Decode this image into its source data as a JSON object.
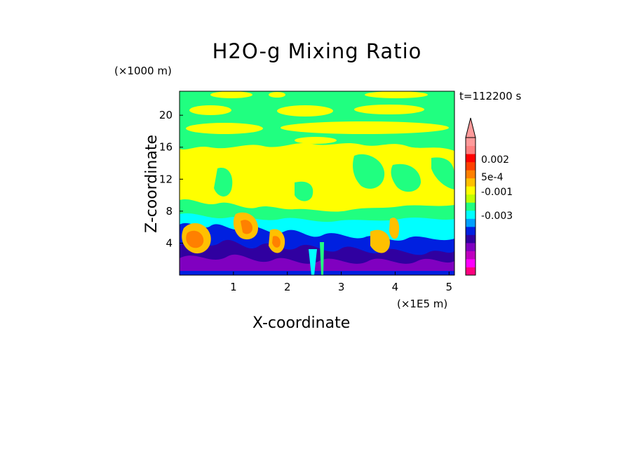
{
  "chart_data": {
    "type": "heatmap",
    "title": "H2O-g Mixing Ratio",
    "xlabel": "X-coordinate",
    "ylabel": "Z-coordinate",
    "x_unit": "(×1E5 m)",
    "y_unit": "(×1000 m)",
    "time_label": "t=112200 s",
    "xlim": [
      0,
      5.1
    ],
    "ylim": [
      0,
      23
    ],
    "x_ticks": [
      1,
      2,
      3,
      4,
      5
    ],
    "y_ticks": [
      4,
      8,
      12,
      16,
      20
    ],
    "colorbar": {
      "labels": [
        "0.002",
        "5e-4",
        "-0.001",
        "-0.003"
      ],
      "colors": [
        "#ff0080",
        "#ff00ff",
        "#c000c0",
        "#8000c0",
        "#3000a0",
        "#0020e0",
        "#00a0ff",
        "#00ffff",
        "#20ff80",
        "#c0ff00",
        "#ffff00",
        "#ffc000",
        "#ff8000",
        "#ff4000",
        "#ff0000",
        "#ff8080",
        "#ff9a9a"
      ]
    }
  }
}
